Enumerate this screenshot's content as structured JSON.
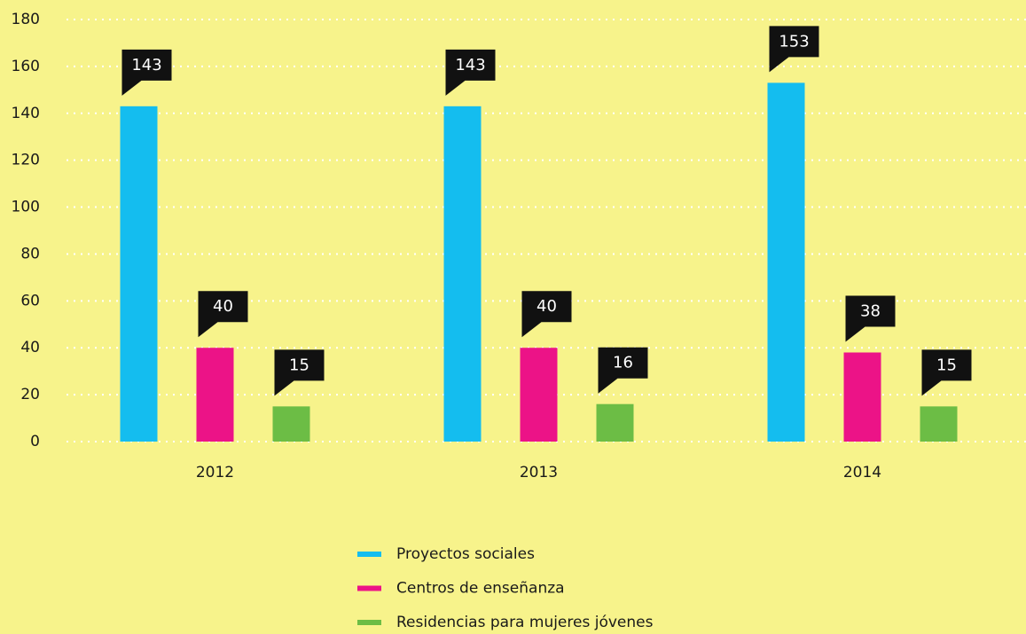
{
  "chart_data": {
    "type": "bar",
    "categories": [
      "2012",
      "2013",
      "2014"
    ],
    "series": [
      {
        "name": "Proyectos sociales",
        "color": "#14bdef",
        "values": [
          143,
          143,
          153
        ]
      },
      {
        "name": "Centros de enseñanza",
        "color": "#ec1387",
        "values": [
          40,
          40,
          38
        ]
      },
      {
        "name": "Residencias para mujeres jóvenes",
        "color": "#6cbd45",
        "values": [
          15,
          16,
          15
        ]
      }
    ],
    "ylim": [
      0,
      180
    ],
    "yticks": [
      0,
      20,
      40,
      60,
      80,
      100,
      120,
      140,
      160,
      180
    ],
    "grid": true,
    "legend": "bottom"
  }
}
